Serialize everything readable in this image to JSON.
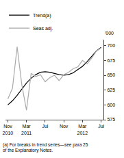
{
  "chart_data": {
    "type": "line",
    "categories": [
      "Nov\n2010",
      null,
      null,
      null,
      "Mar\n2011",
      null,
      null,
      null,
      "Jul",
      null,
      null,
      null,
      "Nov",
      null,
      null,
      null,
      "Mar\n2012",
      null,
      null,
      null,
      "Jul"
    ],
    "series": [
      {
        "name": "Trend(a)",
        "color": "#000000",
        "values": [
          600,
          607,
          616,
          627,
          637,
          645,
          651,
          655,
          656,
          655,
          653,
          651,
          650,
          651,
          654,
          659,
          665,
          673,
          682,
          691,
          697
        ]
      },
      {
        "name": "Seas adj.",
        "color": "#aaaaaa",
        "values": [
          610,
          628,
          698,
          634,
          591,
          653,
          648,
          651,
          639,
          646,
          650,
          641,
          651,
          655,
          661,
          664,
          675,
          669,
          679,
          691,
          696
        ]
      }
    ],
    "ylabel": "'000",
    "footnote": "(a) For breaks in trend series—see para 25\nof the Explanatory Notes.",
    "ylim": [
      575,
      710
    ],
    "yticks": [
      575,
      600,
      625,
      650,
      675,
      700
    ],
    "grid": false,
    "legend": "upper left"
  }
}
